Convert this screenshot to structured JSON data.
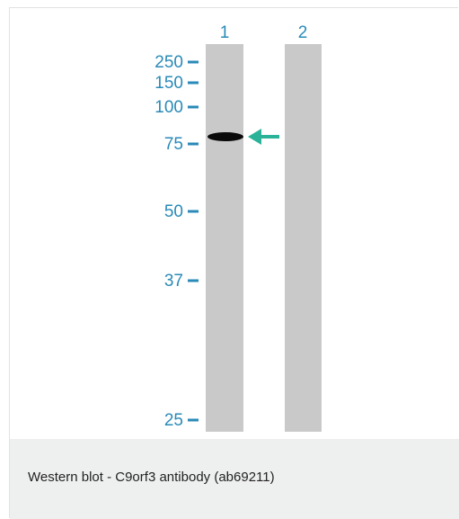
{
  "blot": {
    "lanes": [
      "1",
      "2"
    ],
    "markers": [
      "250",
      "150",
      "100",
      "75",
      "50",
      "37",
      "25"
    ]
  },
  "caption": "Western blot - C9orf3 antibody (ab69211)"
}
